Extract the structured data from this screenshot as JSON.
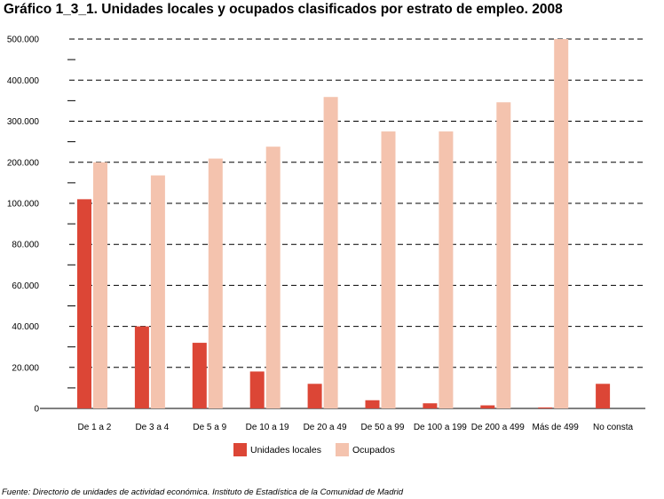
{
  "title": "Gráfico 1_3_1. Unidades locales y ocupados clasificados por estrato de empleo. 2008",
  "source": "Fuente: Directorio de unidades de actividad económica. Instituto de Estadística de la Comunidad de Madrid",
  "colors": {
    "unidades": "#dc4636",
    "ocupados": "#f4c3ae",
    "grid": "#000000"
  },
  "chart_data": {
    "type": "bar",
    "title": "Gráfico 1_3_1. Unidades locales y ocupados clasificados por estrato de empleo. 2008",
    "xlabel": "",
    "ylabel": "",
    "categories": [
      "De 1 a 2",
      "De 3 a 4",
      "De 5 a 9",
      "De 10 a 19",
      "De 20 a 49",
      "De 50 a 99",
      "De 100 a 199",
      "De 200 a 499",
      "Más de 499",
      "No consta"
    ],
    "y_ticks": [
      "0",
      "20.000",
      "40.000",
      "60.000",
      "80.000",
      "100.000",
      "200.000",
      "300.000",
      "400.000",
      "500.000"
    ],
    "y_scale": "piecewise linear: 0–100.000 in steps of 20.000, then 100.000–500.000 in steps of 100.000",
    "grid": "horizontal dashed",
    "legend": "bottom",
    "series": [
      {
        "name": "Unidades locales",
        "values": [
          110000,
          40000,
          32000,
          18000,
          12000,
          4000,
          2500,
          1500,
          500,
          12000
        ]
      },
      {
        "name": "Ocupados",
        "values": [
          200000,
          168000,
          209000,
          238000,
          359000,
          275000,
          275000,
          346000,
          500000,
          0
        ]
      }
    ]
  }
}
